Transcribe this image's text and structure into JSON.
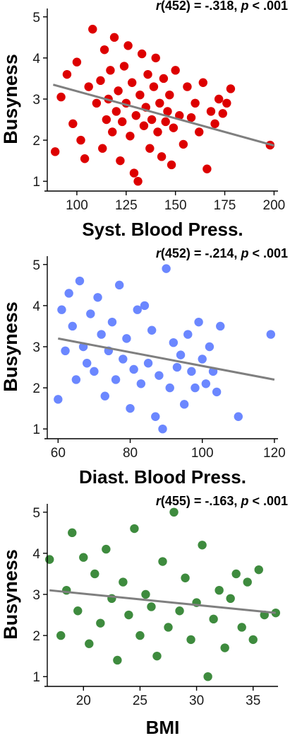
{
  "chart_data": [
    {
      "type": "scatter",
      "ylabel": "Busyness",
      "xlabel": "Syst. Blood Press.",
      "xlim": [
        85,
        202
      ],
      "ylim": [
        0.9,
        5.1
      ],
      "xticks": [
        100,
        125,
        150,
        175,
        200
      ],
      "yticks": [
        1,
        2,
        3,
        4,
        5
      ],
      "color": "#dd0000",
      "stat": {
        "r_text": "r",
        "r_rest": "(452) = -.318, ",
        "p_text": "p",
        "p_rest": " < .001"
      },
      "trend": {
        "x": [
          88,
          200
        ],
        "y": [
          3.35,
          1.87
        ]
      },
      "points": [
        [
          89,
          1.72
        ],
        [
          92,
          3.05
        ],
        [
          95,
          3.6
        ],
        [
          98,
          2.4
        ],
        [
          100,
          3.9
        ],
        [
          102,
          2.0
        ],
        [
          104,
          1.55
        ],
        [
          106,
          3.3
        ],
        [
          108,
          4.7
        ],
        [
          110,
          2.9
        ],
        [
          112,
          3.45
        ],
        [
          113,
          1.8
        ],
        [
          114,
          4.2
        ],
        [
          115,
          2.5
        ],
        [
          116,
          3.0
        ],
        [
          117,
          3.7
        ],
        [
          118,
          2.2
        ],
        [
          119,
          4.5
        ],
        [
          120,
          2.7
        ],
        [
          121,
          3.2
        ],
        [
          122,
          1.5
        ],
        [
          123,
          2.45
        ],
        [
          124,
          3.8
        ],
        [
          125,
          2.9
        ],
        [
          126,
          4.3
        ],
        [
          127,
          2.1
        ],
        [
          128,
          3.4
        ],
        [
          129,
          1.2
        ],
        [
          130,
          2.6
        ],
        [
          131,
          1.0
        ],
        [
          132,
          3.1
        ],
        [
          133,
          4.1
        ],
        [
          134,
          2.35
        ],
        [
          135,
          2.8
        ],
        [
          136,
          3.6
        ],
        [
          137,
          1.8
        ],
        [
          138,
          2.5
        ],
        [
          139,
          3.3
        ],
        [
          140,
          4.0
        ],
        [
          141,
          2.2
        ],
        [
          142,
          2.9
        ],
        [
          143,
          1.6
        ],
        [
          144,
          3.5
        ],
        [
          145,
          2.45
        ],
        [
          146,
          2.7
        ],
        [
          147,
          3.1
        ],
        [
          148,
          1.4
        ],
        [
          149,
          2.3
        ],
        [
          150,
          3.7
        ],
        [
          152,
          2.6
        ],
        [
          154,
          1.9
        ],
        [
          156,
          3.3
        ],
        [
          158,
          2.55
        ],
        [
          160,
          2.9
        ],
        [
          162,
          2.2
        ],
        [
          164,
          3.4
        ],
        [
          166,
          1.3
        ],
        [
          168,
          2.7
        ],
        [
          170,
          2.4
        ],
        [
          172,
          3.0
        ],
        [
          174,
          2.65
        ],
        [
          176,
          2.9
        ],
        [
          178,
          3.25
        ],
        [
          198,
          1.88
        ]
      ]
    },
    {
      "type": "scatter",
      "ylabel": "Busyness",
      "xlabel": "Diast. Blood Press.",
      "xlim": [
        57,
        121
      ],
      "ylim": [
        0.9,
        5.1
      ],
      "xticks": [
        60,
        80,
        100,
        120
      ],
      "yticks": [
        1,
        2,
        3,
        4,
        5
      ],
      "color": "#6b87ff",
      "stat": {
        "r_text": "r",
        "r_rest": "(452) = -.214, ",
        "p_text": "p",
        "p_rest": " < .001"
      },
      "trend": {
        "x": [
          60,
          120
        ],
        "y": [
          3.2,
          2.2
        ]
      },
      "points": [
        [
          60,
          1.72
        ],
        [
          61,
          3.9
        ],
        [
          62,
          2.9
        ],
        [
          63,
          4.3
        ],
        [
          64,
          3.5
        ],
        [
          65,
          2.2
        ],
        [
          66,
          4.6
        ],
        [
          67,
          3.0
        ],
        [
          68,
          2.6
        ],
        [
          69,
          3.8
        ],
        [
          70,
          2.4
        ],
        [
          71,
          4.2
        ],
        [
          72,
          3.3
        ],
        [
          73,
          1.8
        ],
        [
          74,
          2.9
        ],
        [
          75,
          3.6
        ],
        [
          76,
          2.2
        ],
        [
          77,
          4.5
        ],
        [
          78,
          2.7
        ],
        [
          79,
          3.2
        ],
        [
          80,
          1.5
        ],
        [
          81,
          2.45
        ],
        [
          82,
          3.9
        ],
        [
          83,
          2.1
        ],
        [
          84,
          4.0
        ],
        [
          85,
          2.6
        ],
        [
          86,
          3.4
        ],
        [
          87,
          1.3
        ],
        [
          88,
          2.3
        ],
        [
          89,
          1.0
        ],
        [
          90,
          4.9
        ],
        [
          91,
          2.0
        ],
        [
          92,
          3.1
        ],
        [
          93,
          2.5
        ],
        [
          94,
          2.8
        ],
        [
          95,
          1.6
        ],
        [
          96,
          3.3
        ],
        [
          97,
          2.4
        ],
        [
          98,
          2.0
        ],
        [
          99,
          3.6
        ],
        [
          100,
          2.7
        ],
        [
          101,
          2.1
        ],
        [
          102,
          3.0
        ],
        [
          103,
          2.4
        ],
        [
          104,
          1.9
        ],
        [
          105,
          3.5
        ],
        [
          110,
          1.3
        ],
        [
          119,
          3.3
        ]
      ]
    },
    {
      "type": "scatter",
      "ylabel": "Busyness",
      "xlabel": "BMI",
      "xlim": [
        16.8,
        37.2
      ],
      "ylim": [
        0.9,
        5.1
      ],
      "xticks": [
        20,
        25,
        30,
        35
      ],
      "yticks": [
        1,
        2,
        3,
        4,
        5
      ],
      "color": "#3e8b3e",
      "stat": {
        "r_text": "r",
        "r_rest": "(455) = -.163, ",
        "p_text": "p",
        "p_rest": " < .001"
      },
      "trend": {
        "x": [
          17,
          37
        ],
        "y": [
          3.1,
          2.55
        ]
      },
      "points": [
        [
          17,
          3.85
        ],
        [
          18,
          2.0
        ],
        [
          18.5,
          3.1
        ],
        [
          19,
          4.5
        ],
        [
          19.5,
          2.6
        ],
        [
          20,
          3.9
        ],
        [
          20.5,
          1.8
        ],
        [
          21,
          3.5
        ],
        [
          21.5,
          2.3
        ],
        [
          22,
          4.1
        ],
        [
          22.5,
          2.9
        ],
        [
          23,
          1.4
        ],
        [
          23.5,
          3.3
        ],
        [
          24,
          2.5
        ],
        [
          24.5,
          4.6
        ],
        [
          25,
          2.0
        ],
        [
          25.5,
          3.0
        ],
        [
          26,
          2.7
        ],
        [
          26.5,
          1.5
        ],
        [
          27,
          3.8
        ],
        [
          27.5,
          2.2
        ],
        [
          28,
          5.0
        ],
        [
          28.5,
          2.6
        ],
        [
          29,
          3.4
        ],
        [
          29.5,
          1.9
        ],
        [
          30,
          2.8
        ],
        [
          30.5,
          4.2
        ],
        [
          31,
          1.0
        ],
        [
          31.5,
          2.4
        ],
        [
          32,
          3.1
        ],
        [
          32.5,
          1.7
        ],
        [
          33,
          2.9
        ],
        [
          33.5,
          3.5
        ],
        [
          34,
          2.2
        ],
        [
          34.5,
          3.3
        ],
        [
          35,
          1.9
        ],
        [
          35.5,
          3.6
        ],
        [
          36,
          2.5
        ],
        [
          37,
          2.55
        ]
      ]
    }
  ]
}
